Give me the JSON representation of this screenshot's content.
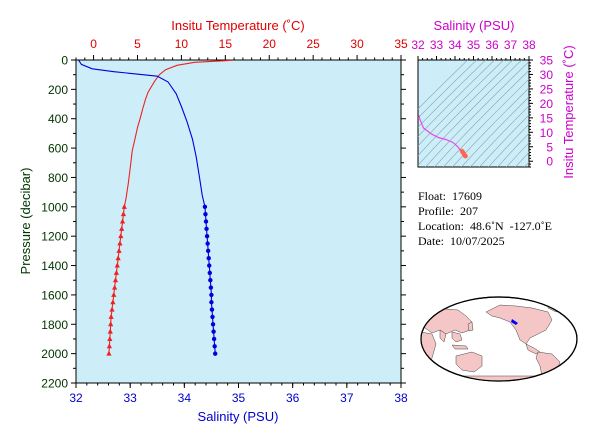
{
  "chart_data": [
    {
      "type": "line",
      "panel": "profile",
      "top_axis": {
        "title": "Insitu Temperature (˚C)",
        "range": [
          -2,
          35
        ],
        "ticks": [
          0,
          5,
          10,
          15,
          20,
          25,
          30,
          35
        ],
        "color": "#dd0000"
      },
      "bottom_axis": {
        "title": "Salinity (PSU)",
        "range": [
          32,
          38
        ],
        "ticks": [
          32,
          33,
          34,
          35,
          36,
          37,
          38
        ],
        "color": "#0000cc"
      },
      "left_axis": {
        "title": "Pressure (decibar)",
        "range": [
          0,
          2200
        ],
        "ticks": [
          0,
          200,
          400,
          600,
          800,
          1000,
          1200,
          1400,
          1600,
          1800,
          2000,
          2200
        ],
        "inverted": true,
        "color": "#003300"
      },
      "background": "#cdeef8",
      "series": [
        {
          "axis": "top",
          "color": "#ee2222",
          "marker": "triangle",
          "line_points": [
            [
              15.8,
              2
            ],
            [
              14.5,
              6
            ],
            [
              11.5,
              16
            ],
            [
              9.5,
              36
            ],
            [
              8.2,
              66
            ],
            [
              7.5,
              100
            ],
            [
              7.0,
              140
            ],
            [
              6.6,
              180
            ],
            [
              6.2,
              220
            ],
            [
              5.9,
              270
            ],
            [
              5.6,
              330
            ],
            [
              5.3,
              400
            ],
            [
              5.0,
              460
            ],
            [
              4.7,
              540
            ],
            [
              4.4,
              620
            ],
            [
              4.2,
              720
            ],
            [
              3.95,
              840
            ],
            [
              3.7,
              940
            ],
            [
              3.5,
              1000
            ]
          ],
          "marker_points": [
            [
              3.5,
              1000
            ],
            [
              3.4,
              1050
            ],
            [
              3.3,
              1100
            ],
            [
              3.2,
              1150
            ],
            [
              3.1,
              1200
            ],
            [
              3.0,
              1250
            ],
            [
              2.9,
              1300
            ],
            [
              2.8,
              1350
            ],
            [
              2.7,
              1400
            ],
            [
              2.6,
              1450
            ],
            [
              2.5,
              1500
            ],
            [
              2.4,
              1550
            ],
            [
              2.3,
              1600
            ],
            [
              2.2,
              1650
            ],
            [
              2.1,
              1700
            ],
            [
              2.0,
              1750
            ],
            [
              1.95,
              1800
            ],
            [
              1.9,
              1850
            ],
            [
              1.85,
              1900
            ],
            [
              1.8,
              1950
            ],
            [
              1.75,
              2000
            ]
          ]
        },
        {
          "axis": "bottom",
          "color": "#0000dd",
          "marker": "circle",
          "line_points": [
            [
              32.05,
              2
            ],
            [
              32.1,
              30
            ],
            [
              32.3,
              60
            ],
            [
              32.7,
              80
            ],
            [
              33.1,
              95
            ],
            [
              33.5,
              110
            ],
            [
              33.7,
              150
            ],
            [
              33.85,
              230
            ],
            [
              33.95,
              320
            ],
            [
              34.05,
              420
            ],
            [
              34.15,
              540
            ],
            [
              34.22,
              660
            ],
            [
              34.28,
              800
            ],
            [
              34.33,
              920
            ],
            [
              34.38,
              1000
            ]
          ],
          "marker_points": [
            [
              34.38,
              1000
            ],
            [
              34.39,
              1050
            ],
            [
              34.4,
              1100
            ],
            [
              34.41,
              1150
            ],
            [
              34.42,
              1200
            ],
            [
              34.43,
              1250
            ],
            [
              34.44,
              1300
            ],
            [
              34.45,
              1350
            ],
            [
              34.46,
              1400
            ],
            [
              34.47,
              1450
            ],
            [
              34.48,
              1500
            ],
            [
              34.49,
              1550
            ],
            [
              34.5,
              1600
            ],
            [
              34.5,
              1650
            ],
            [
              34.51,
              1700
            ],
            [
              34.52,
              1750
            ],
            [
              34.53,
              1800
            ],
            [
              34.54,
              1850
            ],
            [
              34.55,
              1900
            ],
            [
              34.56,
              1950
            ],
            [
              34.57,
              2000
            ]
          ]
        }
      ]
    },
    {
      "type": "scatter",
      "panel": "ts_diagram",
      "top_axis": {
        "title": "Salinity (PSU)",
        "range": [
          32,
          38
        ],
        "ticks": [
          32,
          33,
          34,
          35,
          36,
          37,
          38
        ],
        "color": "#cc00cc"
      },
      "right_axis": {
        "title": "Insitu Temperature (˚C)",
        "range": [
          -2,
          35
        ],
        "ticks": [
          0,
          5,
          10,
          15,
          20,
          25,
          30,
          35
        ],
        "color": "#cc00cc"
      },
      "series": [
        {
          "color": "#ee44ee",
          "points": [
            [
              32.05,
              15.8
            ],
            [
              32.1,
              14.5
            ],
            [
              32.3,
              11.5
            ],
            [
              32.7,
              9.5
            ],
            [
              33.1,
              8.2
            ],
            [
              33.5,
              7.5
            ],
            [
              33.7,
              7.0
            ],
            [
              33.85,
              6.6
            ],
            [
              33.95,
              6.2
            ],
            [
              34.05,
              5.6
            ],
            [
              34.15,
              5.0
            ],
            [
              34.22,
              4.4
            ],
            [
              34.28,
              3.95
            ],
            [
              34.33,
              3.7
            ],
            [
              34.38,
              3.5
            ]
          ]
        },
        {
          "color": "#ff6655",
          "points": [
            [
              34.38,
              3.5
            ],
            [
              34.42,
              3.1
            ],
            [
              34.46,
              2.7
            ],
            [
              34.5,
              2.3
            ],
            [
              34.53,
              1.95
            ],
            [
              34.57,
              1.75
            ]
          ]
        }
      ]
    }
  ],
  "info": {
    "float": "Float:  17609",
    "profile": "Profile:  207",
    "location": "Location:  48.6˚N  -127.0˚E",
    "date": "Date:  10/07/2025"
  },
  "map": {
    "land_color": "#f5c6c6",
    "ocean_color": "#ffffff",
    "float_marker_color": "#0000ff"
  }
}
